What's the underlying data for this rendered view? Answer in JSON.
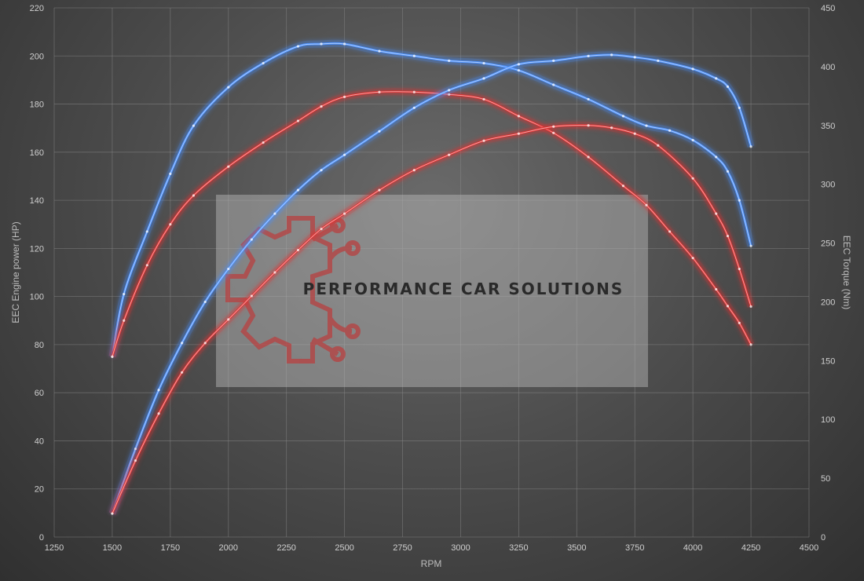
{
  "chart_data": {
    "type": "line",
    "xlabel": "RPM",
    "ylabel_left": "EEC Engine power (HP)",
    "ylabel_right": "EEC Torque (Nm)",
    "xlim": [
      1250,
      4500
    ],
    "xticks": [
      1250,
      1500,
      1750,
      2000,
      2250,
      2500,
      2750,
      3000,
      3250,
      3500,
      3750,
      4000,
      4250,
      4500
    ],
    "ylim_left": [
      0,
      220
    ],
    "yticks_left": [
      0,
      20,
      40,
      60,
      80,
      100,
      120,
      140,
      160,
      180,
      200,
      220
    ],
    "ylim_right": [
      0,
      450
    ],
    "yticks_right": [
      0,
      50,
      100,
      150,
      200,
      250,
      300,
      350,
      400,
      450
    ],
    "grid": true,
    "series": [
      {
        "color": "#4a90ff",
        "axis": "left",
        "x": [
          1500,
          1550,
          1650,
          1750,
          1850,
          2000,
          2150,
          2300,
          2400,
          2500,
          2650,
          2800,
          2950,
          3100,
          3250,
          3400,
          3550,
          3700,
          3800,
          3900,
          4000,
          4100,
          4150,
          4200,
          4250
        ],
        "y": [
          75,
          101,
          127,
          151,
          171,
          187,
          197,
          204,
          205,
          205,
          202,
          200,
          198,
          197,
          194,
          188,
          182,
          175,
          171,
          169,
          165,
          158,
          152,
          140,
          121
        ]
      },
      {
        "color": "#e03030",
        "axis": "left",
        "x": [
          1500,
          1550,
          1650,
          1750,
          1850,
          2000,
          2150,
          2300,
          2400,
          2500,
          2650,
          2800,
          2950,
          3100,
          3250,
          3400,
          3550,
          3700,
          3800,
          3900,
          4000,
          4100,
          4150,
          4200,
          4250
        ],
        "y": [
          75,
          90,
          113,
          130,
          142,
          154,
          164,
          173,
          179,
          183,
          185,
          185,
          184,
          182,
          175,
          168,
          158,
          146,
          138,
          127,
          116,
          103,
          96,
          89,
          80
        ]
      },
      {
        "color": "#4a90ff",
        "axis": "right",
        "x": [
          1500,
          1600,
          1700,
          1800,
          1900,
          2000,
          2100,
          2200,
          2300,
          2400,
          2500,
          2650,
          2800,
          2950,
          3100,
          3250,
          3400,
          3550,
          3650,
          3750,
          3850,
          4000,
          4100,
          4150,
          4200,
          4250
        ],
        "y": [
          20,
          75,
          125,
          165,
          200,
          228,
          253,
          275,
          295,
          312,
          325,
          345,
          365,
          380,
          390,
          402,
          405,
          409,
          410,
          408,
          405,
          398,
          390,
          383,
          365,
          332
        ]
      },
      {
        "color": "#e03030",
        "axis": "right",
        "x": [
          1500,
          1600,
          1700,
          1800,
          1900,
          2000,
          2100,
          2200,
          2300,
          2400,
          2500,
          2650,
          2800,
          2950,
          3100,
          3250,
          3400,
          3550,
          3650,
          3750,
          3850,
          4000,
          4100,
          4150,
          4200,
          4250
        ],
        "y": [
          20,
          65,
          105,
          140,
          165,
          185,
          205,
          225,
          244,
          262,
          275,
          295,
          312,
          325,
          337,
          343,
          349,
          350,
          348,
          343,
          333,
          305,
          275,
          256,
          228,
          196
        ]
      }
    ]
  },
  "watermark": {
    "text": "PERFORMANCE CAR SOLUTIONS",
    "icon": "gear-circuit-icon",
    "icon_color": "#b84040"
  }
}
